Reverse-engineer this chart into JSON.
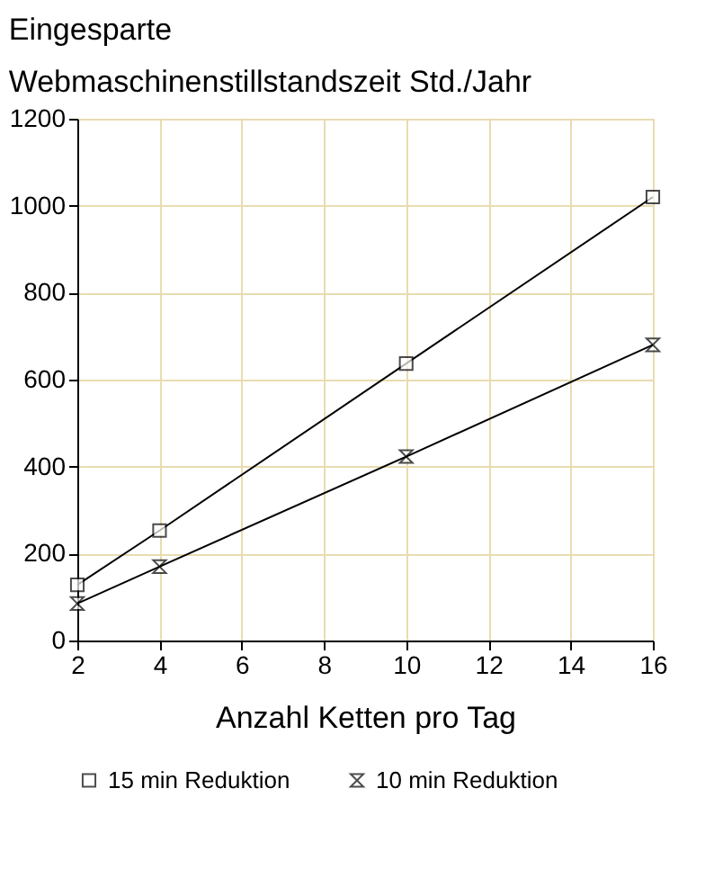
{
  "chart_data": {
    "type": "line",
    "title": "Eingesparte",
    "subtitle": "Webmaschinenstillstandszeit Std./Jahr",
    "xlabel": "Anzahl Ketten pro Tag",
    "x": [
      2,
      4,
      10,
      16
    ],
    "series": [
      {
        "name": "15 min Reduktion",
        "color": "#000000",
        "marker": "square",
        "values": [
          128,
          253,
          637,
          1020
        ]
      },
      {
        "name": "10 min Reduktion",
        "color": "#000000",
        "marker": "diamond",
        "values": [
          85,
          170,
          423,
          680
        ]
      }
    ],
    "xlim": [
      2,
      16
    ],
    "xticks": [
      2,
      4,
      6,
      8,
      10,
      12,
      14,
      16
    ],
    "ylim": [
      0,
      1200
    ],
    "yticks": [
      0,
      200,
      400,
      600,
      800,
      1000,
      1200
    ],
    "grid": true,
    "legend": "bottom",
    "line_style": "solid"
  }
}
